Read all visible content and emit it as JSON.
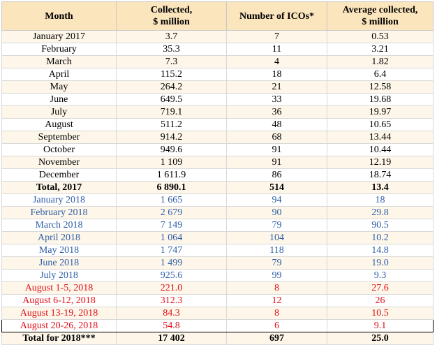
{
  "headers": {
    "month": "Month",
    "collected_line1": "Collected,",
    "collected_line2": "$ million",
    "icos": "Number of ICOs*",
    "avg_line1": "Average collected,",
    "avg_line2": "$ million"
  },
  "rows": [
    {
      "month": "January 2017",
      "collected": "3.7",
      "icos": "7",
      "avg": "0.53",
      "style": ""
    },
    {
      "month": "February",
      "collected": "35.3",
      "icos": "11",
      "avg": "3.21",
      "style": ""
    },
    {
      "month": "March",
      "collected": "7.3",
      "icos": "4",
      "avg": "1.82",
      "style": ""
    },
    {
      "month": "April",
      "collected": "115.2",
      "icos": "18",
      "avg": "6.4",
      "style": ""
    },
    {
      "month": "May",
      "collected": "264.2",
      "icos": "21",
      "avg": "12.58",
      "style": ""
    },
    {
      "month": "June",
      "collected": "649.5",
      "icos": "33",
      "avg": "19.68",
      "style": ""
    },
    {
      "month": "July",
      "collected": "719.1",
      "icos": "36",
      "avg": "19.97",
      "style": ""
    },
    {
      "month": "August",
      "collected": "511.2",
      "icos": "48",
      "avg": "10.65",
      "style": ""
    },
    {
      "month": "September",
      "collected": "914.2",
      "icos": "68",
      "avg": "13.44",
      "style": ""
    },
    {
      "month": "October",
      "collected": "949.6",
      "icos": "91",
      "avg": "10.44",
      "style": ""
    },
    {
      "month": "November",
      "collected": "1 109",
      "icos": "91",
      "avg": "12.19",
      "style": ""
    },
    {
      "month": "December",
      "collected": "1 611.9",
      "icos": "86",
      "avg": "18.74",
      "style": ""
    },
    {
      "month": "Total, 2017",
      "collected": "6 890.1",
      "icos": "514",
      "avg": "13.4",
      "style": "total"
    },
    {
      "month": "January 2018",
      "collected": "1 665",
      "icos": "94",
      "avg": "18",
      "style": "blue"
    },
    {
      "month": "February 2018",
      "collected": "2 679",
      "icos": "90",
      "avg": "29.8",
      "style": "blue"
    },
    {
      "month": "March 2018",
      "collected": "7 149",
      "icos": "79",
      "avg": "90.5",
      "style": "blue"
    },
    {
      "month": "April 2018",
      "collected": "1 064",
      "icos": "104",
      "avg": "10.2",
      "style": "blue"
    },
    {
      "month": "May 2018",
      "collected": "1 747",
      "icos": "118",
      "avg": "14.8",
      "style": "blue"
    },
    {
      "month": "June 2018",
      "collected": "1 499",
      "icos": "79",
      "avg": "19.0",
      "style": "blue"
    },
    {
      "month": "July 2018",
      "collected": "925.6",
      "icos": "99",
      "avg": "9.3",
      "style": "blue"
    },
    {
      "month": "August 1-5, 2018",
      "collected": "221.0",
      "icos": "8",
      "avg": "27.6",
      "style": "red"
    },
    {
      "month": "August 6-12, 2018",
      "collected": "312.3",
      "icos": "12",
      "avg": "26",
      "style": "red"
    },
    {
      "month": "August 13-19, 2018",
      "collected": "84.3",
      "icos": "8",
      "avg": "10.5",
      "style": "red"
    },
    {
      "month": "August 20-26, 2018",
      "collected": "54.8",
      "icos": "6",
      "avg": "9.1",
      "style": "red boxed"
    },
    {
      "month": "Total for 2018***",
      "collected": "17 402",
      "icos": "697",
      "avg": "25.0",
      "style": "total"
    }
  ]
}
